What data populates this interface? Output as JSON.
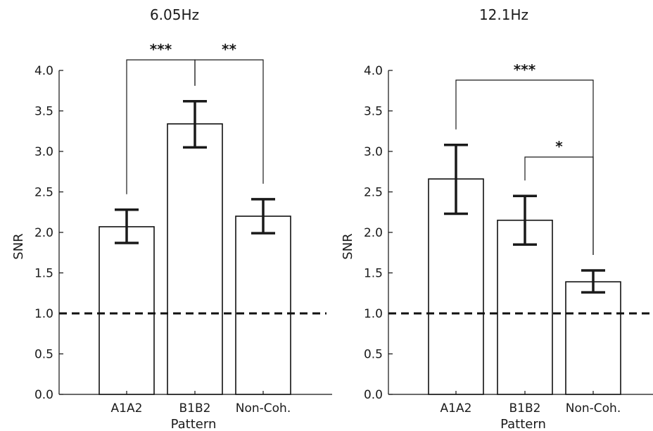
{
  "chart_data": [
    {
      "type": "bar",
      "title": "6.05Hz",
      "xlabel": "Pattern",
      "ylabel": "SNR",
      "categories": [
        "A1A2",
        "B1B2",
        "Non-Coh."
      ],
      "values": [
        2.07,
        3.34,
        2.2
      ],
      "errors": [
        [
          1.87,
          2.28
        ],
        [
          3.05,
          3.62
        ],
        [
          1.99,
          2.41
        ]
      ],
      "ylim": [
        0.0,
        4.0
      ],
      "yticks": [
        "0.0",
        "0.5",
        "1.0",
        "1.5",
        "2.0",
        "2.5",
        "3.0",
        "3.5",
        "4.0"
      ],
      "reference_line": 1.0,
      "grid": false,
      "significance": [
        {
          "from": "A1A2",
          "to": "B1B2",
          "label": "***",
          "level": 4.0
        },
        {
          "from": "B1B2",
          "to": "Non-Coh.",
          "label": "**",
          "level": 4.0
        }
      ]
    },
    {
      "type": "bar",
      "title": "12.1Hz",
      "xlabel": "Pattern",
      "ylabel": "SNR",
      "categories": [
        "A1A2",
        "B1B2",
        "Non-Coh."
      ],
      "values": [
        2.66,
        2.15,
        1.39
      ],
      "errors": [
        [
          2.23,
          3.08
        ],
        [
          1.85,
          2.45
        ],
        [
          1.26,
          1.53
        ]
      ],
      "ylim": [
        0.0,
        4.0
      ],
      "yticks": [
        "0.0",
        "0.5",
        "1.0",
        "1.5",
        "2.0",
        "2.5",
        "3.0",
        "3.5",
        "4.0"
      ],
      "reference_line": 1.0,
      "grid": false,
      "significance": [
        {
          "from": "A1A2",
          "to": "Non-Coh.",
          "label": "***",
          "level": 3.75
        },
        {
          "from": "B1B2",
          "to": "Non-Coh.",
          "label": "*",
          "level": 2.8
        }
      ]
    }
  ]
}
